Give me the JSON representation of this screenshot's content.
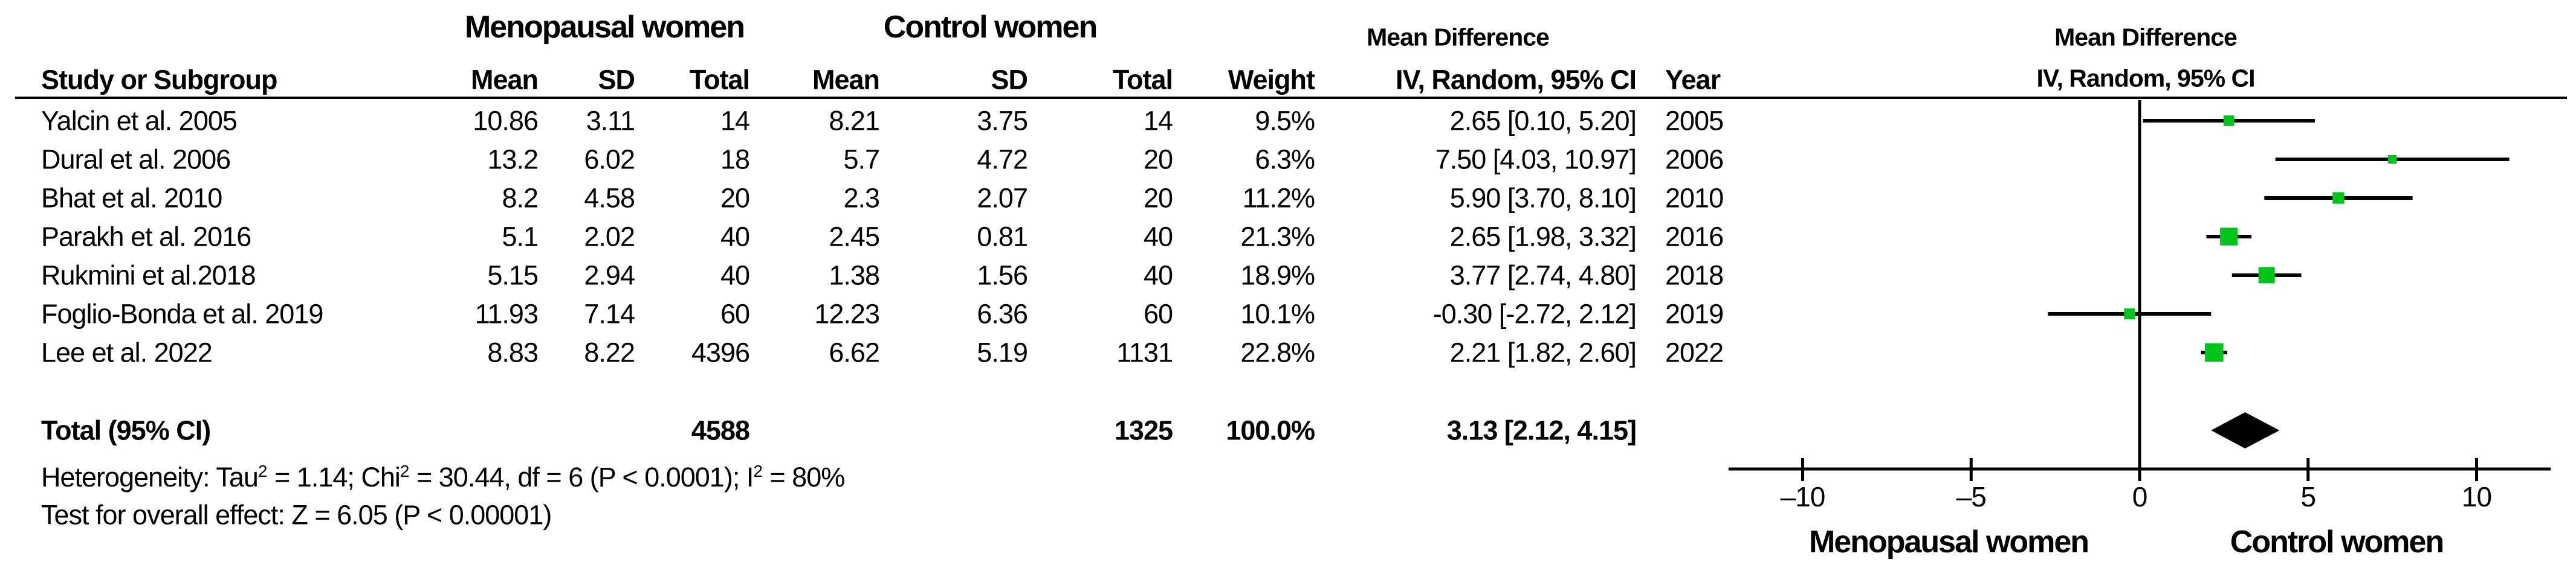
{
  "figure": {
    "headers": {
      "group1": "Menopausal women",
      "group2": "Control women",
      "md_title": "Mean Difference",
      "study_col": "Study or Subgroup",
      "mean_col": "Mean",
      "sd_col": "SD",
      "total_col": "Total",
      "weight_col": "Weight",
      "ci_col": "IV, Random, 95% CI",
      "year_col": "Year"
    },
    "footer": {
      "het_p1": "Heterogeneity: Tau",
      "het_s1": "2",
      "het_p2": " = 1.14; Chi",
      "het_s2": "2",
      "het_p3": " = 30.44, df = 6 (P < 0.0001); I",
      "het_s3": "2",
      "het_p4": " = 80%",
      "overall": "Test for overall effect: Z = 6.05 (P < 0.00001)"
    },
    "colors": {
      "marker_green": "#00C41C",
      "line_black": "#000000"
    }
  },
  "chart_data": {
    "type": "forest",
    "effect_measure": "Mean Difference",
    "model": "IV, Random, 95% CI",
    "axis": {
      "ticks": [
        -10,
        -5,
        0,
        5,
        10
      ],
      "min": -12.2,
      "max": 12.2,
      "left_label": "Menopausal women",
      "right_label": "Control women",
      "grid": false
    },
    "studies": [
      {
        "name": "Yalcin et al. 2005",
        "mean1": "10.86",
        "sd1": "3.11",
        "total1": "14",
        "mean2": "8.21",
        "sd2": "3.75",
        "total2": "14",
        "weight": "9.5%",
        "weight_pct": 9.5,
        "md": 2.65,
        "ci_low": 0.1,
        "ci_high": 5.2,
        "ci_text": "2.65 [0.10, 5.20]",
        "year": "2005"
      },
      {
        "name": "Dural et al. 2006",
        "mean1": "13.2",
        "sd1": "6.02",
        "total1": "18",
        "mean2": "5.7",
        "sd2": "4.72",
        "total2": "20",
        "weight": "6.3%",
        "weight_pct": 6.3,
        "md": 7.5,
        "ci_low": 4.03,
        "ci_high": 10.97,
        "ci_text": "7.50 [4.03, 10.97]",
        "year": "2006"
      },
      {
        "name": "Bhat et al. 2010",
        "mean1": "8.2",
        "sd1": "4.58",
        "total1": "20",
        "mean2": "2.3",
        "sd2": "2.07",
        "total2": "20",
        "weight": "11.2%",
        "weight_pct": 11.2,
        "md": 5.9,
        "ci_low": 3.7,
        "ci_high": 8.1,
        "ci_text": "5.90 [3.70, 8.10]",
        "year": "2010"
      },
      {
        "name": "Parakh et al. 2016",
        "mean1": "5.1",
        "sd1": "2.02",
        "total1": "40",
        "mean2": "2.45",
        "sd2": "0.81",
        "total2": "40",
        "weight": "21.3%",
        "weight_pct": 21.3,
        "md": 2.65,
        "ci_low": 1.98,
        "ci_high": 3.32,
        "ci_text": "2.65 [1.98, 3.32]",
        "year": "2016"
      },
      {
        "name": "Rukmini et al.2018",
        "mean1": "5.15",
        "sd1": "2.94",
        "total1": "40",
        "mean2": "1.38",
        "sd2": "1.56",
        "total2": "40",
        "weight": "18.9%",
        "weight_pct": 18.9,
        "md": 3.77,
        "ci_low": 2.74,
        "ci_high": 4.8,
        "ci_text": "3.77 [2.74, 4.80]",
        "year": "2018"
      },
      {
        "name": "Foglio-Bonda et al. 2019",
        "mean1": "11.93",
        "sd1": "7.14",
        "total1": "60",
        "mean2": "12.23",
        "sd2": "6.36",
        "total2": "60",
        "weight": "10.1%",
        "weight_pct": 10.1,
        "md": -0.3,
        "ci_low": -2.72,
        "ci_high": 2.12,
        "ci_text": "-0.30 [-2.72, 2.12]",
        "year": "2019"
      },
      {
        "name": "Lee et al. 2022",
        "mean1": "8.83",
        "sd1": "8.22",
        "total1": "4396",
        "mean2": "6.62",
        "sd2": "5.19",
        "total2": "1131",
        "weight": "22.8%",
        "weight_pct": 22.8,
        "md": 2.21,
        "ci_low": 1.82,
        "ci_high": 2.6,
        "ci_text": "2.21 [1.82, 2.60]",
        "year": "2022"
      }
    ],
    "total": {
      "label": "Total (95% CI)",
      "total1": "4588",
      "total2": "1325",
      "weight": "100.0%",
      "weight_pct": 100.0,
      "md": 3.13,
      "ci_low": 2.12,
      "ci_high": 4.15,
      "ci_text": "3.13 [2.12, 4.15]"
    }
  }
}
